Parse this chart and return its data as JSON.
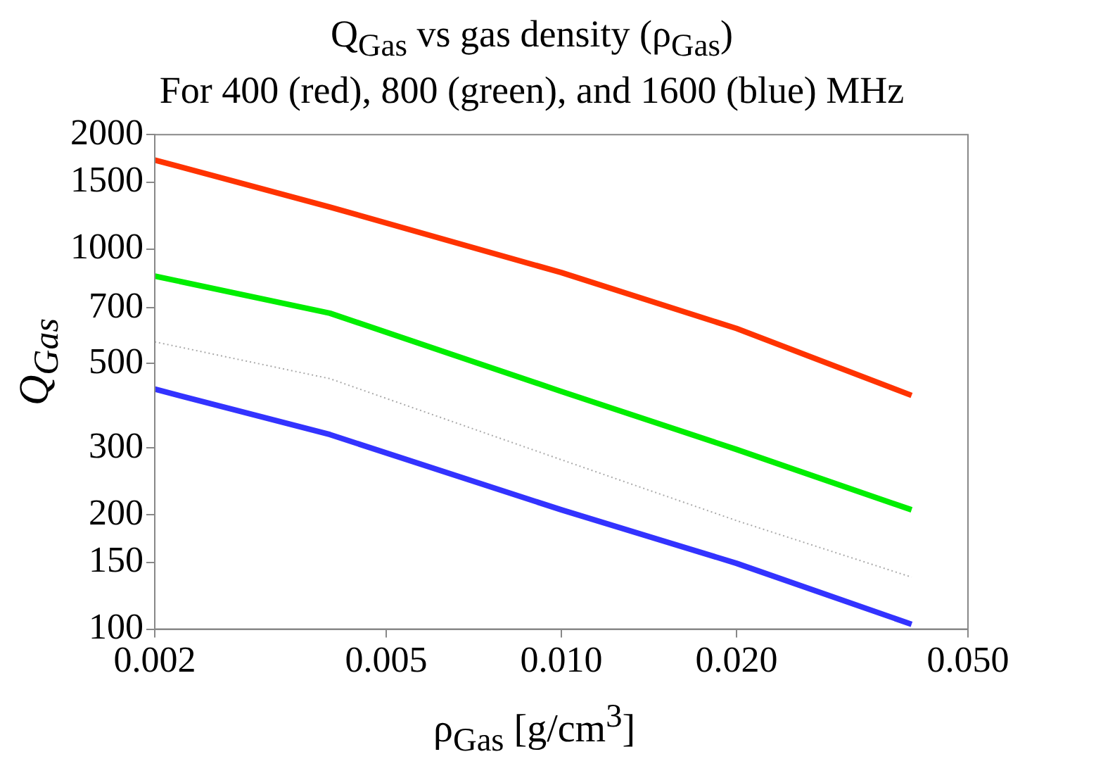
{
  "chart_data": {
    "type": "line",
    "title": "Q$_{Gas}$ vs gas density (ρ$_{Gas}$)",
    "subtitle": "For 400 (red),  800 (green), and 1600 (blue) MHz",
    "xlabel": "ρ$_{Gas}$ [g/cm$^{3}$]",
    "ylabel": "Q$_{Gas}$",
    "log": "xy",
    "grid": false,
    "legend": false,
    "marker": "none",
    "xlim": [
      0.002,
      0.05
    ],
    "xticks": [
      0.002,
      0.005,
      {
        "value": 0.01,
        "label": "0.010"
      },
      {
        "value": 0.02,
        "label": "0.020"
      },
      {
        "value": 0.05,
        "label": "0.050"
      }
    ],
    "ylim": [
      100,
      2000
    ],
    "yticks": [
      100,
      150,
      200,
      300,
      500,
      700,
      1000,
      1500,
      2000
    ],
    "x": [
      0.002,
      0.004,
      0.01,
      0.02,
      0.04
    ],
    "series": [
      {
        "color": "#ff3300",
        "line_style": "solid",
        "values": [
          1715,
          1290,
          867,
          618,
          412
        ]
      },
      {
        "color": "#00ee00",
        "line_style": "solid",
        "values": [
          849,
          678,
          422,
          297,
          206
        ]
      },
      {
        "color": "#aaaaaa",
        "line_style": "dotted",
        "values": [
          570,
          456,
          279,
          193,
          137
        ]
      },
      {
        "color": "#3333ff",
        "line_style": "solid",
        "values": [
          428,
          325,
          206,
          149,
          103
        ]
      }
    ]
  }
}
